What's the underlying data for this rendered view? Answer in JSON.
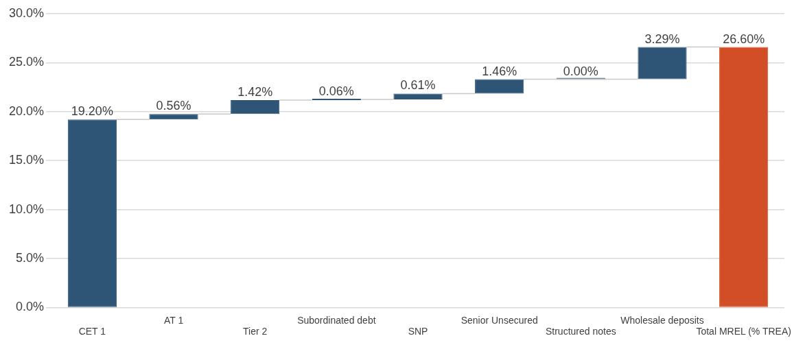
{
  "chart_data": {
    "type": "bar",
    "categories": [
      "CET 1",
      "AT 1",
      "Tier 2",
      "Subordinated debt",
      "SNP",
      "Senior Unsecured",
      "Structured notes",
      "Wholesale deposits",
      "Total MREL (% TREA)"
    ],
    "values": [
      19.2,
      0.56,
      1.42,
      0.06,
      0.61,
      1.46,
      0.0,
      3.29,
      26.6
    ],
    "base": [
      0,
      19.2,
      19.76,
      21.18,
      21.24,
      21.85,
      23.31,
      23.31,
      0
    ],
    "colors": [
      "#2e5575",
      "#2e5575",
      "#2e5575",
      "#2e5575",
      "#2e5575",
      "#2e5575",
      "#2e5575",
      "#2e5575",
      "#d24e27"
    ],
    "value_labels": [
      "19.20%",
      "0.56%",
      "1.42%",
      "0.06%",
      "0.61%",
      "1.46%",
      "0.00%",
      "3.29%",
      "26.60%"
    ],
    "ylim": [
      0,
      30
    ],
    "yticks": [
      {
        "value": 0,
        "label": "0.0%"
      },
      {
        "value": 5,
        "label": "5.0%"
      },
      {
        "value": 10,
        "label": "10.0%"
      },
      {
        "value": 15,
        "label": "15.0%"
      },
      {
        "value": 20,
        "label": "20.0%"
      },
      {
        "value": 25,
        "label": "25.0%"
      },
      {
        "value": 30,
        "label": "30.0%"
      }
    ],
    "grid": "y",
    "legend": false
  }
}
